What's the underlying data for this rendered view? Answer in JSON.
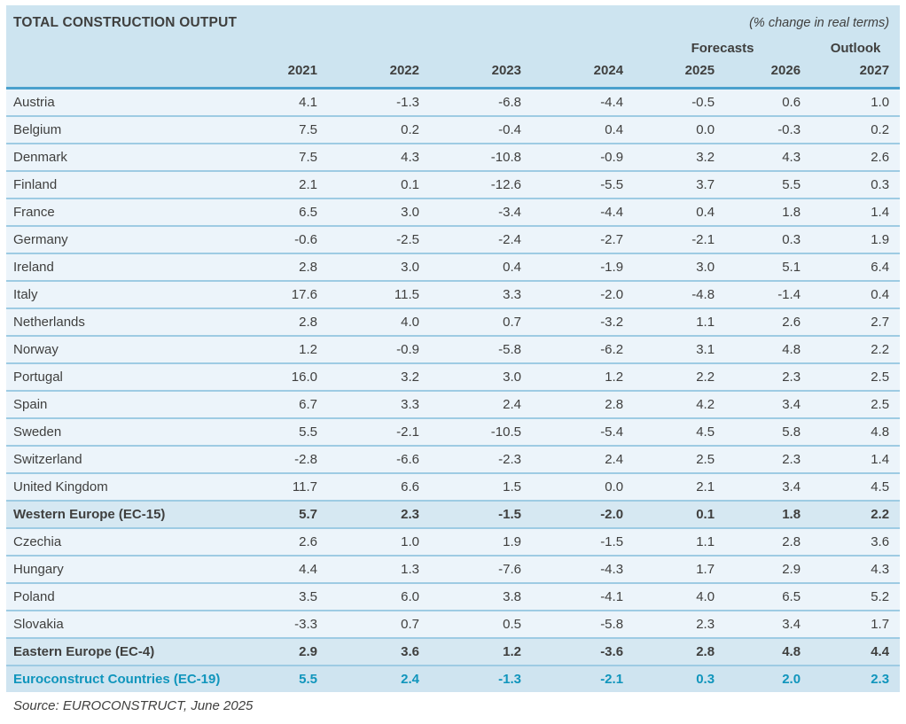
{
  "header": {
    "title": "TOTAL CONSTRUCTION OUTPUT",
    "unit_note": "(% change in real terms)",
    "forecasts_label": "Forecasts",
    "outlook_label": "Outlook",
    "years": [
      "2021",
      "2022",
      "2023",
      "2024",
      "2025",
      "2026",
      "2027"
    ]
  },
  "chart_data": {
    "type": "table",
    "title": "TOTAL CONSTRUCTION OUTPUT",
    "unit": "% change in real terms",
    "columns": [
      "2021",
      "2022",
      "2023",
      "2024",
      "2025",
      "2026",
      "2027"
    ],
    "column_groups": {
      "forecasts": [
        "2025",
        "2026"
      ],
      "outlook": [
        "2027"
      ]
    },
    "rows": [
      {
        "label": "Austria",
        "kind": "country",
        "values": [
          4.1,
          -1.3,
          -6.8,
          -4.4,
          -0.5,
          0.6,
          1.0
        ]
      },
      {
        "label": "Belgium",
        "kind": "country",
        "values": [
          7.5,
          0.2,
          -0.4,
          0.4,
          0.0,
          -0.3,
          0.2
        ]
      },
      {
        "label": "Denmark",
        "kind": "country",
        "values": [
          7.5,
          4.3,
          -10.8,
          -0.9,
          3.2,
          4.3,
          2.6
        ]
      },
      {
        "label": "Finland",
        "kind": "country",
        "values": [
          2.1,
          0.1,
          -12.6,
          -5.5,
          3.7,
          5.5,
          0.3
        ]
      },
      {
        "label": "France",
        "kind": "country",
        "values": [
          6.5,
          3.0,
          -3.4,
          -4.4,
          0.4,
          1.8,
          1.4
        ]
      },
      {
        "label": "Germany",
        "kind": "country",
        "values": [
          -0.6,
          -2.5,
          -2.4,
          -2.7,
          -2.1,
          0.3,
          1.9
        ]
      },
      {
        "label": "Ireland",
        "kind": "country",
        "values": [
          2.8,
          3.0,
          0.4,
          -1.9,
          3.0,
          5.1,
          6.4
        ]
      },
      {
        "label": "Italy",
        "kind": "country",
        "values": [
          17.6,
          11.5,
          3.3,
          -2.0,
          -4.8,
          -1.4,
          0.4
        ]
      },
      {
        "label": "Netherlands",
        "kind": "country",
        "values": [
          2.8,
          4.0,
          0.7,
          -3.2,
          1.1,
          2.6,
          2.7
        ]
      },
      {
        "label": "Norway",
        "kind": "country",
        "values": [
          1.2,
          -0.9,
          -5.8,
          -6.2,
          3.1,
          4.8,
          2.2
        ]
      },
      {
        "label": "Portugal",
        "kind": "country",
        "values": [
          16.0,
          3.2,
          3.0,
          1.2,
          2.2,
          2.3,
          2.5
        ]
      },
      {
        "label": "Spain",
        "kind": "country",
        "values": [
          6.7,
          3.3,
          2.4,
          2.8,
          4.2,
          3.4,
          2.5
        ]
      },
      {
        "label": "Sweden",
        "kind": "country",
        "values": [
          5.5,
          -2.1,
          -10.5,
          -5.4,
          4.5,
          5.8,
          4.8
        ]
      },
      {
        "label": "Switzerland",
        "kind": "country",
        "values": [
          -2.8,
          -6.6,
          -2.3,
          2.4,
          2.5,
          2.3,
          1.4
        ]
      },
      {
        "label": "United Kingdom",
        "kind": "country",
        "values": [
          11.7,
          6.6,
          1.5,
          0.0,
          2.1,
          3.4,
          4.5
        ]
      },
      {
        "label": "Western Europe (EC-15)",
        "kind": "aggregate",
        "values": [
          5.7,
          2.3,
          -1.5,
          -2.0,
          0.1,
          1.8,
          2.2
        ]
      },
      {
        "label": "Czechia",
        "kind": "country",
        "values": [
          2.6,
          1.0,
          1.9,
          -1.5,
          1.1,
          2.8,
          3.6
        ]
      },
      {
        "label": "Hungary",
        "kind": "country",
        "values": [
          4.4,
          1.3,
          -7.6,
          -4.3,
          1.7,
          2.9,
          4.3
        ]
      },
      {
        "label": "Poland",
        "kind": "country",
        "values": [
          3.5,
          6.0,
          3.8,
          -4.1,
          4.0,
          6.5,
          5.2
        ]
      },
      {
        "label": "Slovakia",
        "kind": "country",
        "values": [
          -3.3,
          0.7,
          0.5,
          -5.8,
          2.3,
          3.4,
          1.7
        ]
      },
      {
        "label": "Eastern Europe (EC-4)",
        "kind": "aggregate",
        "values": [
          2.9,
          3.6,
          1.2,
          -3.6,
          2.8,
          4.8,
          4.4
        ]
      },
      {
        "label": "Euroconstruct Countries (EC-19)",
        "kind": "total",
        "values": [
          5.5,
          2.4,
          -1.3,
          -2.1,
          0.3,
          2.0,
          2.3
        ]
      }
    ],
    "source": "Source: EUROCONSTRUCT, June 2025"
  },
  "footer": {
    "source": "Source: EUROCONSTRUCT, June 2025"
  },
  "colors": {
    "header_bg": "#cde4f0",
    "row_bg": "#ecf4fa",
    "aggregate_bg": "#d6e8f2",
    "total_bg": "#cfe4f0",
    "divider": "#9ecbe3",
    "strong_divider": "#4aa0cd",
    "text": "#3f3f3e",
    "accent_text": "#1095bc"
  }
}
